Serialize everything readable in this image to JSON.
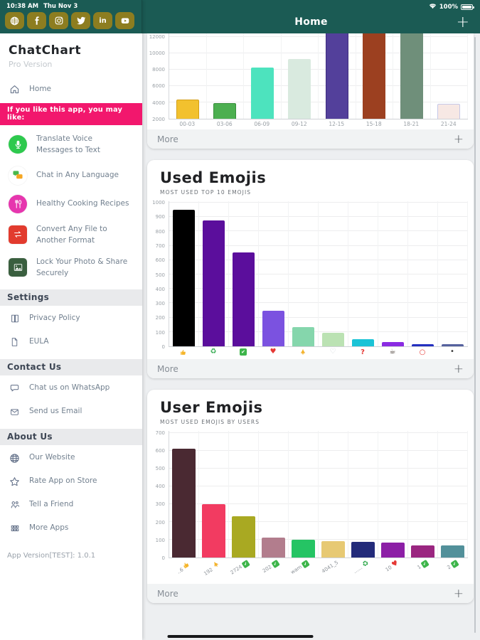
{
  "colors": {
    "teal": "#1b5b54",
    "pink": "#f2176d",
    "olive": "#8d7d20",
    "content_bg": "#edeff1"
  },
  "status_bar": {
    "time": "10:38 AM",
    "date": "Thu Nov 3",
    "battery": "100%"
  },
  "header": {
    "title": "Home",
    "add_label": "+"
  },
  "sidebar": {
    "social": [
      "website",
      "facebook",
      "instagram",
      "twitter",
      "linkedin",
      "youtube"
    ],
    "app_name": "ChatChart",
    "app_subtitle": "Pro Version",
    "home": {
      "label": "Home",
      "icon": "home-icon"
    },
    "promo_banner": "If you like this app, you may like:",
    "promo_items": [
      {
        "label": "Translate Voice Messages to Text",
        "icon": "voice-translate-icon",
        "color": "#2ec94e",
        "shape": "circle"
      },
      {
        "label": "Chat in Any Language",
        "icon": "chat-language-icon",
        "color": "#ffffff",
        "shape": "circle"
      },
      {
        "label": "Healthy Cooking Recipes",
        "icon": "cooking-icon",
        "color": "#e636ae",
        "shape": "circle"
      },
      {
        "label": "Convert Any File to Another Format",
        "icon": "file-convert-icon",
        "color": "#e23b2e",
        "shape": "square"
      },
      {
        "label": "Lock Your Photo & Share Securely",
        "icon": "photo-lock-icon",
        "color": "#3a5f3f",
        "shape": "square"
      }
    ],
    "sections": [
      {
        "header": "Settings",
        "items": [
          {
            "label": "Privacy Policy",
            "icon": "book-icon"
          },
          {
            "label": "EULA",
            "icon": "document-icon"
          }
        ]
      },
      {
        "header": "Contact Us",
        "items": [
          {
            "label": "Chat us on WhatsApp",
            "icon": "chat-bubble-icon"
          },
          {
            "label": "Send us Email",
            "icon": "email-icon"
          }
        ]
      },
      {
        "header": "About Us",
        "items": [
          {
            "label": "Our Website",
            "icon": "globe-icon"
          },
          {
            "label": "Rate App on Store",
            "icon": "star-icon"
          },
          {
            "label": "Tell a Friend",
            "icon": "people-icon"
          },
          {
            "label": "More Apps",
            "icon": "apps-grid-icon"
          }
        ]
      }
    ],
    "app_version": "App Version[TEST]: 1.0.1"
  },
  "cards": [
    {
      "footer": "More",
      "add_label": "+"
    },
    {
      "title": "Used Emojis",
      "subtitle": "MOST USED TOP 10 EMOJIS",
      "footer": "More",
      "add_label": "+"
    },
    {
      "title": "User Emojis",
      "subtitle": "MOST USED EMOJIS BY USERS",
      "footer": "More",
      "add_label": "+"
    }
  ],
  "chart_data": [
    {
      "type": "bar",
      "title": "",
      "categories": [
        "00-03",
        "03-06",
        "06-09",
        "09-12",
        "12-15",
        "15-18",
        "18-21",
        "21-24"
      ],
      "values": [
        4300,
        3900,
        8200,
        9300,
        13000,
        13400,
        13200,
        3800
      ],
      "colors": [
        "#f2c12e",
        "#4caf50",
        "#4de3be",
        "#d9eadf",
        "#53409b",
        "#9c4020",
        "#6f8f7a",
        "#f7e8e4"
      ],
      "border_colors": [
        "#d4a017",
        "#388e3c",
        null,
        null,
        "#3f2e80",
        null,
        null,
        "#c5c8e8"
      ],
      "ylim": [
        2000,
        12400
      ],
      "yticks": [
        2000,
        4000,
        6000,
        8000,
        10000,
        12000
      ],
      "grid": true,
      "note": "Hourly activity chart, top portion scrolled off-screen; bars 12-15, 15-18, 18-21 clipped at top edge"
    },
    {
      "type": "bar",
      "title": "Used Emojis",
      "subtitle": "MOST USED TOP 10 EMOJIS",
      "categories": [
        "thumbs-up",
        "recycle",
        "check",
        "heart",
        "pray",
        "white-heart",
        "question",
        "coffee",
        "circle",
        "dot"
      ],
      "values": [
        950,
        875,
        655,
        250,
        135,
        95,
        48,
        30,
        17,
        13
      ],
      "colors": [
        "#000000",
        "#5b0e9c",
        "#5b0e9c",
        "#7b52e0",
        "#85d6ac",
        "#bbe2b3",
        "#1bc3d6",
        "#8a2be2",
        "#2430c0",
        "#55619e"
      ],
      "ylim": [
        0,
        1010
      ],
      "yticks": [
        0,
        100,
        200,
        300,
        400,
        500,
        600,
        700,
        800,
        900,
        1000
      ],
      "grid": true
    },
    {
      "type": "bar",
      "title": "User Emojis",
      "subtitle": "MOST USED EMOJIS BY USERS",
      "categories": [
        {
          "text": "..6",
          "emoji": "thumbs-up"
        },
        {
          "text": "192",
          "emoji": "pray"
        },
        {
          "text": "2724",
          "emoji": "check"
        },
        {
          "text": "202",
          "emoji": "check"
        },
        {
          "text": "wam",
          "emoji": "check"
        },
        {
          "text": "4041_5",
          "emoji": ""
        },
        {
          "text": "......",
          "emoji": "recycle"
        },
        {
          "text": "10",
          "emoji": "heart"
        },
        {
          "text": "1",
          "emoji": "check"
        },
        {
          "text": "2",
          "emoji": "check"
        }
      ],
      "values": [
        610,
        300,
        230,
        110,
        98,
        90,
        86,
        82,
        68,
        67
      ],
      "colors": [
        "#4a2932",
        "#f23b61",
        "#a9a922",
        "#b27d8d",
        "#25c464",
        "#e7c973",
        "#232b7a",
        "#8c1fa6",
        "#9a2680",
        "#52909a"
      ],
      "ylim": [
        0,
        710
      ],
      "yticks": [
        0,
        100,
        200,
        300,
        400,
        500,
        600,
        700
      ],
      "grid": true
    }
  ]
}
